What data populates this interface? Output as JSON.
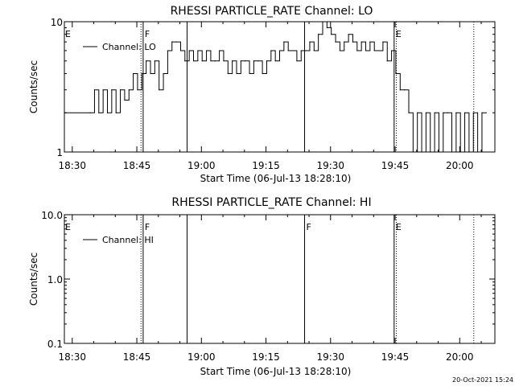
{
  "chart_data": [
    {
      "type": "line",
      "title": "RHESSI PARTICLE_RATE Channel: LO",
      "xlabel": "Start Time (06-Jul-13 18:28:10)",
      "ylabel": "Counts/sec",
      "yscale": "log",
      "ylim": [
        1,
        10
      ],
      "xlim_minutes_after_18_28_10": [
        0,
        100
      ],
      "x_tick_labels": [
        "18:30",
        "18:45",
        "19:00",
        "19:15",
        "19:30",
        "19:45",
        "20:00"
      ],
      "y_tick_labels": [
        "10",
        "1"
      ],
      "y_ticks": [
        10,
        1
      ],
      "legend_position": "top-left",
      "series": [
        {
          "name": "Channel: LO",
          "x_minutes_after_18_28_10": [
            0,
            6,
            7,
            8,
            9,
            10,
            11,
            12,
            13,
            14,
            15,
            16,
            17,
            18,
            19,
            20,
            21,
            22,
            23,
            24,
            25,
            26,
            27,
            28,
            29,
            30,
            31,
            32,
            33,
            34,
            35,
            36,
            37,
            38,
            39,
            40,
            41,
            42,
            43,
            44,
            45,
            46,
            47,
            48,
            49,
            50,
            51,
            52,
            53,
            54,
            55,
            56,
            57,
            58,
            59,
            60,
            61,
            62,
            63,
            64,
            65,
            66,
            67,
            68,
            69,
            70,
            71,
            72,
            73,
            74,
            75,
            76,
            77,
            78,
            79,
            80,
            81,
            82,
            83,
            84,
            85,
            86,
            87,
            88,
            89,
            90,
            91,
            92,
            93,
            94,
            95,
            96,
            97,
            98
          ],
          "values": [
            2,
            2,
            3,
            2,
            3,
            2,
            3,
            2,
            3,
            2.5,
            3,
            4,
            3,
            4,
            5,
            4,
            5,
            3,
            4,
            6,
            7,
            7,
            6,
            5,
            6,
            5,
            6,
            5,
            6,
            5,
            5,
            6,
            5,
            4,
            5,
            4,
            5,
            5,
            4,
            5,
            5,
            4,
            5,
            6,
            5,
            6,
            7,
            6,
            6,
            5,
            6,
            6,
            7,
            6,
            8,
            10,
            9,
            8,
            7,
            6,
            7,
            8,
            7,
            6,
            7,
            6,
            7,
            6,
            6,
            7,
            5,
            6,
            4,
            3,
            3,
            2,
            1,
            2,
            1,
            2,
            1,
            2,
            1,
            2,
            2,
            1,
            2,
            1,
            2,
            1,
            2,
            1,
            2,
            2
          ]
        }
      ],
      "vertical_markers": [
        {
          "x_minutes_after_18_28_10": 17.8,
          "style": "dotted",
          "label": ""
        },
        {
          "x_minutes_after_18_28_10": 18.3,
          "style": "solid",
          "label": "F"
        },
        {
          "x_minutes_after_18_28_10": 28.5,
          "style": "solid",
          "label": ""
        },
        {
          "x_minutes_after_18_28_10": 55.8,
          "style": "solid",
          "label": ""
        },
        {
          "x_minutes_after_18_28_10": 76.6,
          "style": "solid",
          "label": "E"
        },
        {
          "x_minutes_after_18_28_10": 77.1,
          "style": "dotted",
          "label": ""
        },
        {
          "x_minutes_after_18_28_10": 95.1,
          "style": "dotted",
          "label": ""
        }
      ],
      "edge_label": "E"
    },
    {
      "type": "line",
      "title": "RHESSI PARTICLE_RATE Channel: HI",
      "xlabel": "Start Time (06-Jul-13 18:28:10)",
      "ylabel": "Counts/sec",
      "yscale": "log",
      "ylim": [
        0.1,
        10
      ],
      "xlim_minutes_after_18_28_10": [
        0,
        100
      ],
      "x_tick_labels": [
        "18:30",
        "18:45",
        "19:00",
        "19:15",
        "19:30",
        "19:45",
        "20:00"
      ],
      "y_tick_labels": [
        "10.0",
        "1.0",
        "0.1"
      ],
      "y_ticks": [
        10,
        1,
        0.1
      ],
      "legend_position": "top-left",
      "series": [
        {
          "name": "Channel: HI",
          "x_minutes_after_18_28_10": [],
          "values": []
        }
      ],
      "vertical_markers": [
        {
          "x_minutes_after_18_28_10": 17.8,
          "style": "dotted",
          "label": ""
        },
        {
          "x_minutes_after_18_28_10": 18.3,
          "style": "solid",
          "label": "F"
        },
        {
          "x_minutes_after_18_28_10": 28.5,
          "style": "solid",
          "label": ""
        },
        {
          "x_minutes_after_18_28_10": 55.8,
          "style": "solid",
          "label": "F"
        },
        {
          "x_minutes_after_18_28_10": 76.6,
          "style": "solid",
          "label": "E"
        },
        {
          "x_minutes_after_18_28_10": 77.1,
          "style": "dotted",
          "label": ""
        },
        {
          "x_minutes_after_18_28_10": 95.1,
          "style": "dotted",
          "label": ""
        }
      ],
      "edge_label": "E"
    }
  ],
  "footer": {
    "timestamp": "20-Oct-2021 15:24"
  },
  "colors": {
    "line": "#000000",
    "background": "#ffffff"
  }
}
